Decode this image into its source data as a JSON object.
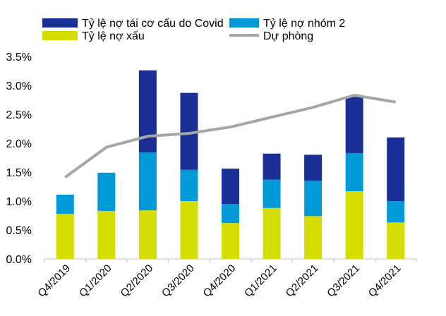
{
  "chart_data": {
    "type": "bar",
    "stacked": true,
    "categories": [
      "Q4/2019",
      "Q1/2020",
      "Q2/2020",
      "Q3/2020",
      "Q4/2020",
      "Q1/2021",
      "Q2/2021",
      "Q3/2021",
      "Q4/2021"
    ],
    "series": [
      {
        "name": "Tỷ lệ nợ xấu",
        "type": "bar",
        "color": "#d4dc00",
        "values": [
          0.78,
          0.83,
          0.84,
          1.0,
          0.62,
          0.88,
          0.74,
          1.17,
          0.63
        ]
      },
      {
        "name": "Tỷ lệ nợ nhóm 2",
        "type": "bar",
        "color": "#0099d8",
        "values": [
          0.33,
          0.66,
          1.0,
          0.54,
          0.33,
          0.49,
          0.61,
          0.66,
          0.37
        ]
      },
      {
        "name": "Tỷ lệ nợ tái cơ cấu do Covid",
        "type": "bar",
        "color": "#1a2f96",
        "values": [
          0,
          0,
          1.42,
          1.33,
          0.61,
          0.45,
          0.45,
          0.97,
          1.1
        ]
      },
      {
        "name": "Dự phòng",
        "type": "line",
        "color": "#a6a6a6",
        "values": [
          1.41,
          1.93,
          2.12,
          2.17,
          2.28,
          2.45,
          2.62,
          2.83,
          2.71
        ]
      }
    ],
    "yticks": [
      "0.0%",
      "0.5%",
      "1.0%",
      "1.5%",
      "2.0%",
      "2.5%",
      "3.0%",
      "3.5%"
    ],
    "ylim": [
      0,
      3.5
    ],
    "grid": false,
    "legend": {
      "placement": "top",
      "order": [
        "Tỷ lệ nợ tái cơ cấu do Covid",
        "Tỷ lệ nợ nhóm 2",
        "Tỷ lệ nợ xấu",
        "Dự phòng"
      ]
    },
    "xlabel": "",
    "ylabel": ""
  }
}
